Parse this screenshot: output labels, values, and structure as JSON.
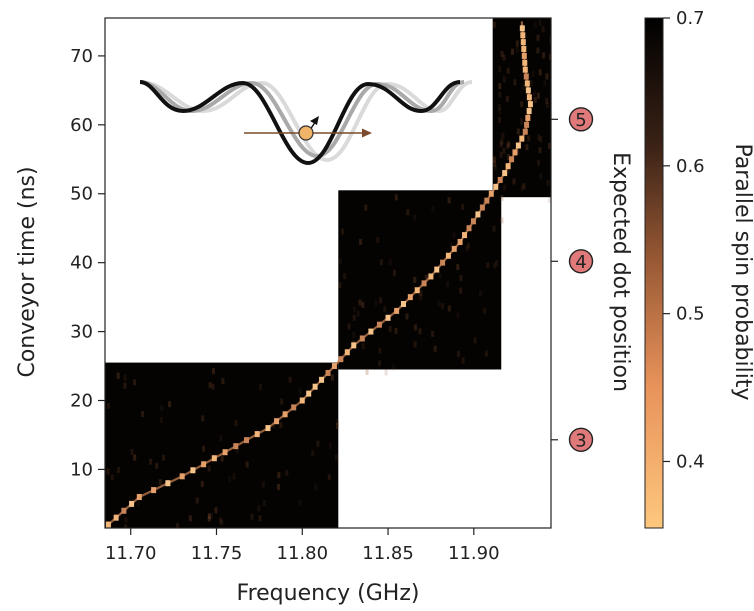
{
  "chart_data": {
    "type": "heatmap",
    "xlabel": "Frequency (GHz)",
    "ylabel": "Conveyor time (ns)",
    "right_axis_label": "Expected dot position",
    "colorbar_label": "Parallel spin probability",
    "xlim": [
      11.685,
      11.945
    ],
    "ylim": [
      1.5,
      75.5
    ],
    "x_ticks": [
      "11.70",
      "11.75",
      "11.80",
      "11.85",
      "11.90"
    ],
    "x_tick_values": [
      11.7,
      11.75,
      11.8,
      11.85,
      11.9
    ],
    "y_ticks": [
      "10",
      "20",
      "30",
      "40",
      "50",
      "60",
      "70"
    ],
    "y_tick_values": [
      10,
      20,
      30,
      40,
      50,
      60,
      70
    ],
    "dot_positions": [
      {
        "label": "3",
        "time": 14.3
      },
      {
        "label": "4",
        "time": 40.2
      },
      {
        "label": "5",
        "time": 60.8
      }
    ],
    "colorbar": {
      "range": [
        0.355,
        0.7
      ],
      "ticks": [
        "0.4",
        "0.5",
        "0.6",
        "0.7"
      ],
      "tick_values": [
        0.4,
        0.5,
        0.6,
        0.7
      ],
      "colors": [
        "#fdc77e",
        "#e8925a",
        "#9a5a35",
        "#3a2216",
        "#000000"
      ]
    },
    "scan_regions": [
      {
        "f_min": 11.685,
        "f_max": 11.821,
        "t_min": 1.5,
        "t_max": 25.5
      },
      {
        "f_min": 11.821,
        "f_max": 11.916,
        "t_min": 24.5,
        "t_max": 50.5
      },
      {
        "f_min": 11.911,
        "f_max": 11.945,
        "t_min": 49.5,
        "t_max": 75.5
      }
    ],
    "resonance_trace": [
      {
        "f": 11.687,
        "t": 2
      },
      {
        "f": 11.705,
        "t": 6
      },
      {
        "f": 11.73,
        "t": 9
      },
      {
        "f": 11.755,
        "t": 12.5
      },
      {
        "f": 11.78,
        "t": 16
      },
      {
        "f": 11.8,
        "t": 20
      },
      {
        "f": 11.815,
        "t": 24
      },
      {
        "f": 11.83,
        "t": 28
      },
      {
        "f": 11.855,
        "t": 33
      },
      {
        "f": 11.875,
        "t": 38
      },
      {
        "f": 11.892,
        "t": 43
      },
      {
        "f": 11.905,
        "t": 48
      },
      {
        "f": 11.918,
        "t": 53
      },
      {
        "f": 11.93,
        "t": 59
      },
      {
        "f": 11.933,
        "t": 63
      },
      {
        "f": 11.93,
        "t": 68
      },
      {
        "f": 11.928,
        "t": 75
      }
    ]
  }
}
